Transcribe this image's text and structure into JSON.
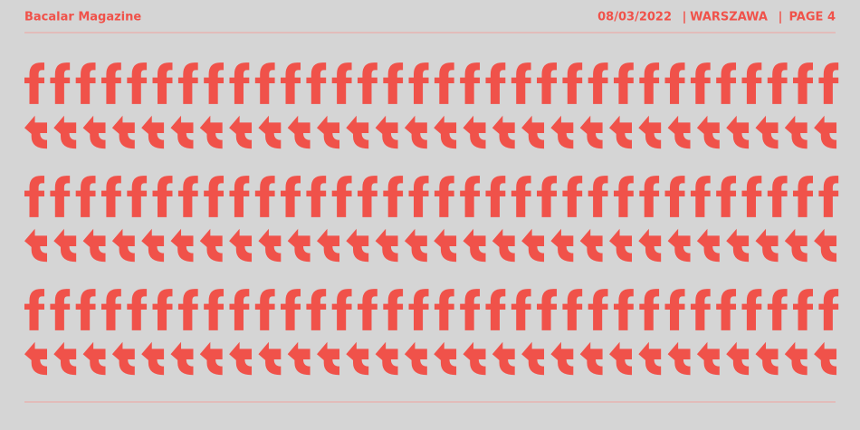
{
  "header": {
    "title": "Bacalar Magazine",
    "date": "08/03/2022",
    "separator_1": "|",
    "city": "WARSZAWA",
    "separator_2": "|",
    "page": "PAGE 4"
  }
}
